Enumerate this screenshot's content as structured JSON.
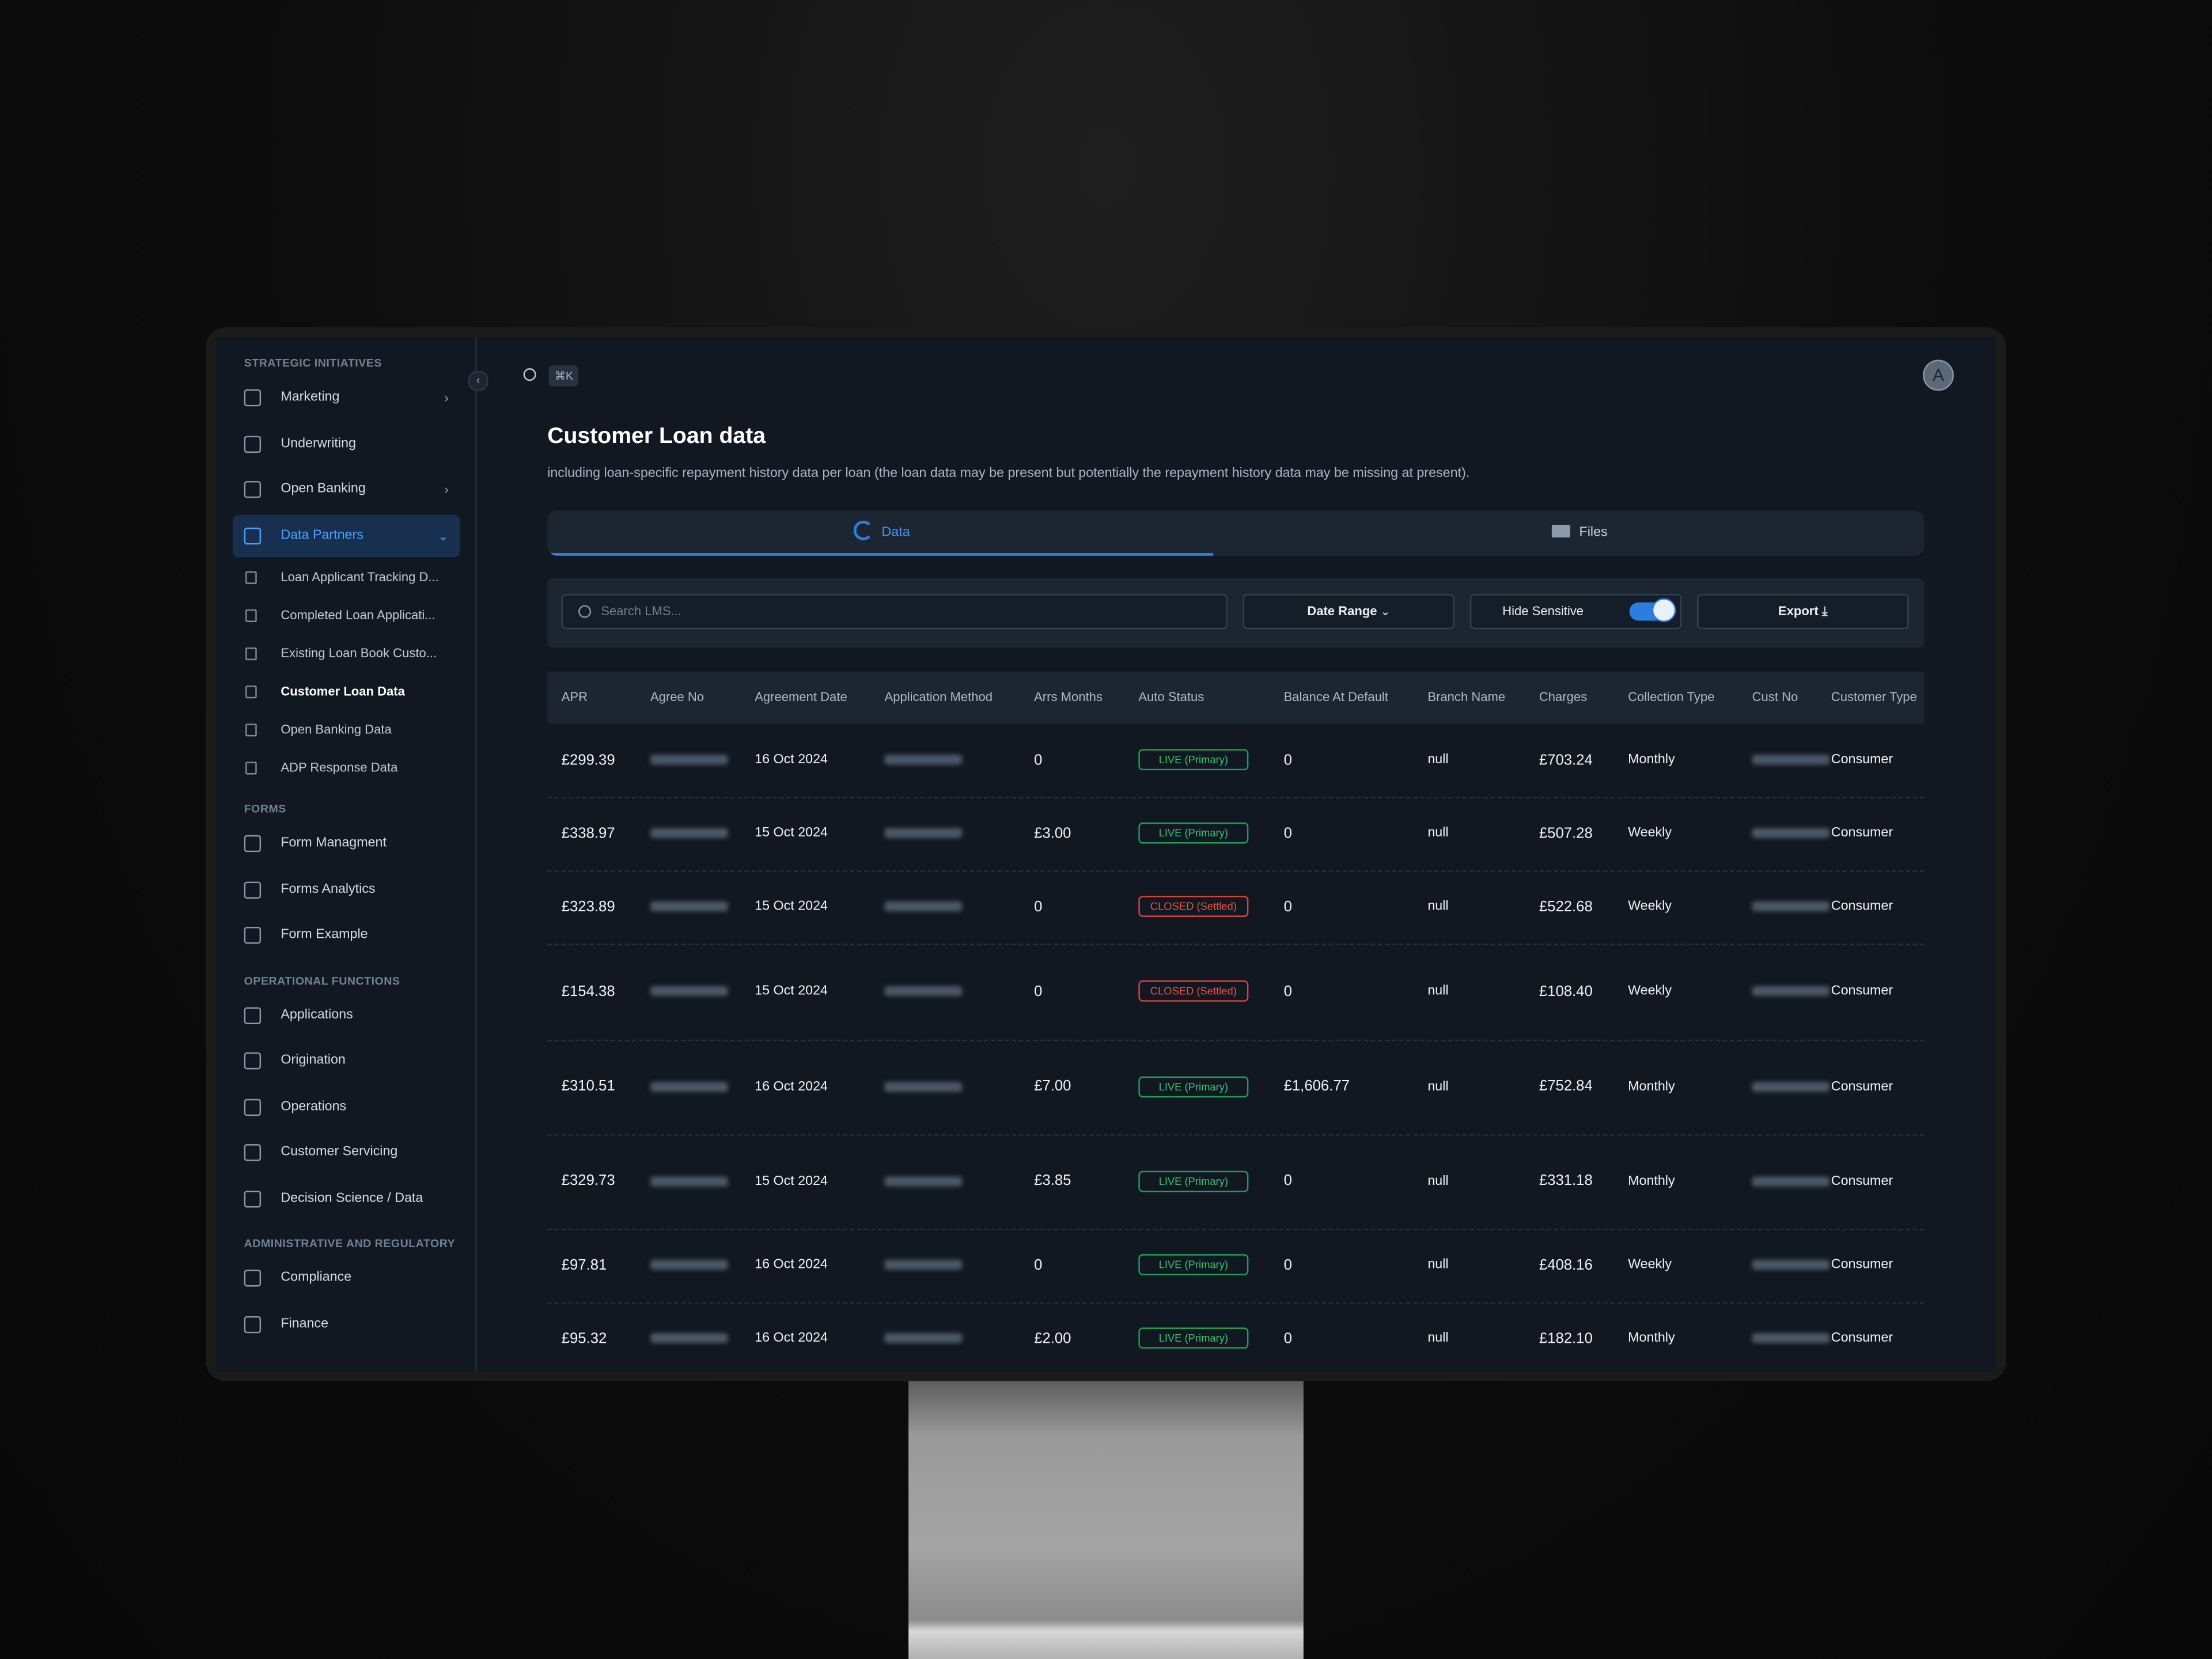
{
  "sidebar": {
    "sections": [
      {
        "title": "STRATEGIC INITIATIVES",
        "items": [
          {
            "label": "Marketing",
            "chevron": "right"
          },
          {
            "label": "Underwriting"
          },
          {
            "label": "Open Banking",
            "chevron": "right"
          },
          {
            "label": "Data Partners",
            "chevron": "down",
            "active": true,
            "children": [
              {
                "label": "Loan Applicant Tracking D..."
              },
              {
                "label": "Completed Loan Applicati..."
              },
              {
                "label": "Existing Loan Book Custo..."
              },
              {
                "label": "Customer Loan Data",
                "active": true
              },
              {
                "label": "Open Banking Data"
              },
              {
                "label": "ADP Response Data"
              }
            ]
          }
        ]
      },
      {
        "title": "FORMS",
        "items": [
          {
            "label": "Form Managment"
          },
          {
            "label": "Forms Analytics"
          },
          {
            "label": "Form Example"
          }
        ]
      },
      {
        "title": "OPERATIONAL FUNCTIONS",
        "items": [
          {
            "label": "Applications"
          },
          {
            "label": "Origination"
          },
          {
            "label": "Operations"
          },
          {
            "label": "Customer Servicing"
          },
          {
            "label": "Decision Science / Data"
          }
        ]
      },
      {
        "title": "ADMINISTRATIVE AND REGULATORY",
        "items": [
          {
            "label": "Compliance"
          },
          {
            "label": "Finance"
          }
        ]
      }
    ]
  },
  "topbar": {
    "shortcut": "⌘K",
    "avatar": "A"
  },
  "header": {
    "title": "Customer Loan data",
    "subtitle": "including loan-specific repayment history data per loan (the loan data may be present but potentially the repayment history data may be missing at present)."
  },
  "tabs": [
    {
      "label": "Data",
      "active": true
    },
    {
      "label": "Files"
    }
  ],
  "toolbar": {
    "search_placeholder": "Search LMS...",
    "date_range": "Date Range",
    "hide_sensitive": "Hide Sensitive",
    "export": "Export"
  },
  "table": {
    "columns": [
      "APR",
      "Agree No",
      "Agreement Date",
      "Application Method",
      "Arrs Months",
      "Auto Status",
      "Balance At Default",
      "Branch Name",
      "Charges",
      "Collection Type",
      "Cust No",
      "Customer Type"
    ],
    "rows": [
      [
        "£299.39",
        null,
        "16 Oct 2024",
        null,
        "0",
        "LIVE (Primary)",
        "0",
        "null",
        "£703.24",
        "Monthly",
        null,
        "Consumer"
      ],
      [
        "£338.97",
        null,
        "15 Oct 2024",
        null,
        "£3.00",
        "LIVE (Primary)",
        "0",
        "null",
        "£507.28",
        "Weekly",
        null,
        "Consumer"
      ],
      [
        "£323.89",
        null,
        "15 Oct 2024",
        null,
        "0",
        "CLOSED (Settled)",
        "0",
        "null",
        "£522.68",
        "Weekly",
        null,
        "Consumer"
      ],
      [
        "£154.38",
        null,
        "15 Oct 2024",
        null,
        "0",
        "CLOSED (Settled)",
        "0",
        "null",
        "£108.40",
        "Weekly",
        null,
        "Consumer"
      ],
      [
        "£310.51",
        null,
        "16 Oct 2024",
        null,
        "£7.00",
        "LIVE (Primary)",
        "£1,606.77",
        "null",
        "£752.84",
        "Monthly",
        null,
        "Consumer"
      ],
      [
        "£329.73",
        null,
        "15 Oct 2024",
        null,
        "£3.85",
        "LIVE (Primary)",
        "0",
        "null",
        "£331.18",
        "Monthly",
        null,
        "Consumer"
      ],
      [
        "£97.81",
        null,
        "16 Oct 2024",
        null,
        "0",
        "LIVE (Primary)",
        "0",
        "null",
        "£408.16",
        "Weekly",
        null,
        "Consumer"
      ],
      [
        "£95.32",
        null,
        "16 Oct 2024",
        null,
        "£2.00",
        "LIVE (Primary)",
        "0",
        "null",
        "£182.10",
        "Monthly",
        null,
        "Consumer"
      ]
    ]
  }
}
